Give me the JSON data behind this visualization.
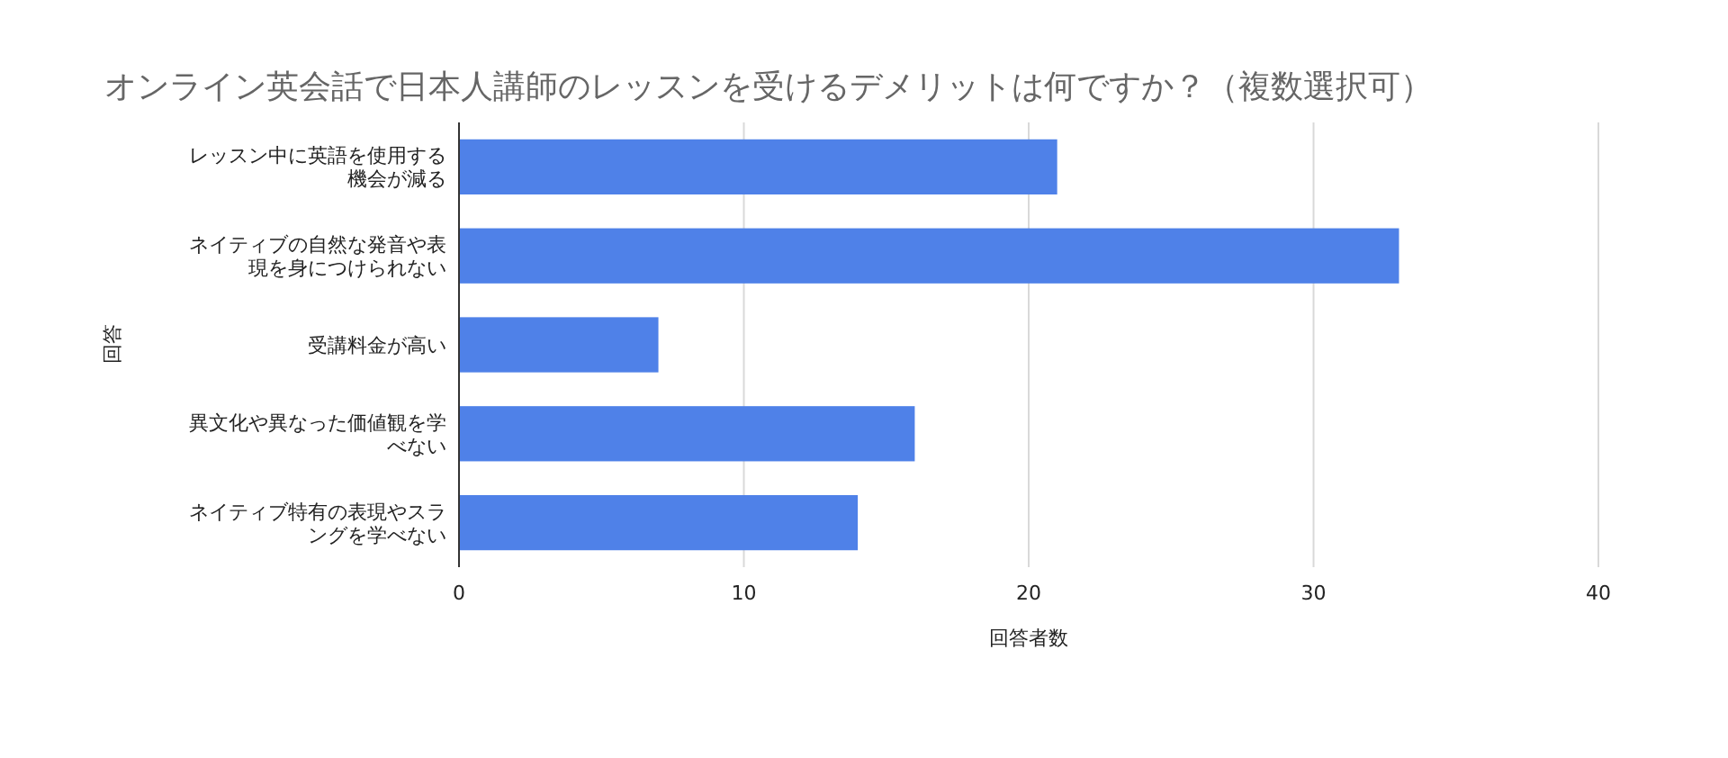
{
  "chart_data": {
    "type": "bar",
    "orientation": "horizontal",
    "title": "オンライン英会話で日本人講師のレッスンを受けるデメリットは何ですか？（複数選択可）",
    "xlabel": "回答者数",
    "ylabel": "回答",
    "categories": [
      "レッスン中に英語を使用する機会が減る",
      "ネイティブの自然な発音や表現を身につけられない",
      "受講料金が高い",
      "異文化や異なった価値観を学べない",
      "ネイティブ特有の表現やスラングを学べない"
    ],
    "values": [
      21,
      33,
      7,
      16,
      14
    ],
    "color": "#4f81e8",
    "xlim": [
      0,
      40
    ],
    "xticks": [
      0,
      10,
      20,
      30,
      40
    ],
    "grid": "x"
  }
}
